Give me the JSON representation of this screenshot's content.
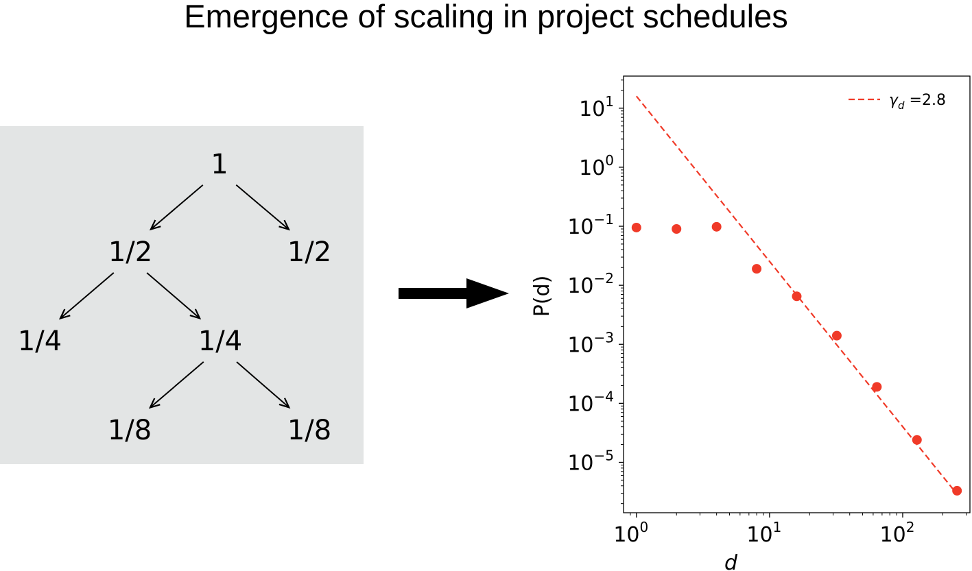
{
  "title": "Emergence of scaling in project schedules",
  "tree": {
    "nodes": [
      {
        "id": "root",
        "label": "1"
      },
      {
        "id": "l1-left",
        "label": "1/2"
      },
      {
        "id": "l1-right",
        "label": "1/2"
      },
      {
        "id": "l2-left",
        "label": "1/4"
      },
      {
        "id": "l2-right",
        "label": "1/4"
      },
      {
        "id": "l3-left",
        "label": "1/8"
      },
      {
        "id": "l3-right",
        "label": "1/8"
      }
    ],
    "edges": [
      [
        "root",
        "l1-left"
      ],
      [
        "root",
        "l1-right"
      ],
      [
        "l1-left",
        "l2-left"
      ],
      [
        "l1-left",
        "l2-right"
      ],
      [
        "l2-right",
        "l3-left"
      ],
      [
        "l2-right",
        "l3-right"
      ]
    ],
    "background": "#e3e5e5"
  },
  "chart_data": {
    "type": "scatter",
    "title": "",
    "xlabel": "d",
    "ylabel": "P(d)",
    "xscale": "log",
    "yscale": "log",
    "xlim": [
      0.8,
      320
    ],
    "ylim": [
      1.4e-06,
      35
    ],
    "x_ticks": [
      {
        "value": 1,
        "base": "10",
        "exp": "0"
      },
      {
        "value": 10,
        "base": "10",
        "exp": "1"
      },
      {
        "value": 100,
        "base": "10",
        "exp": "2"
      }
    ],
    "y_ticks": [
      {
        "value": 10,
        "base": "10",
        "exp": "1"
      },
      {
        "value": 1,
        "base": "10",
        "exp": "0"
      },
      {
        "value": 0.1,
        "base": "10",
        "exp": "−1"
      },
      {
        "value": 0.01,
        "base": "10",
        "exp": "−2"
      },
      {
        "value": 0.001,
        "base": "10",
        "exp": "−3"
      },
      {
        "value": 0.0001,
        "base": "10",
        "exp": "−4"
      },
      {
        "value": 1e-05,
        "base": "10",
        "exp": "−5"
      }
    ],
    "series": [
      {
        "color": "#f03a28",
        "x": [
          1,
          2,
          4,
          8,
          16,
          32,
          64,
          128,
          256
        ],
        "y": [
          0.095,
          0.09,
          0.098,
          0.019,
          0.0065,
          0.0014,
          0.00019,
          2.4e-05,
          3.3e-06
        ]
      }
    ],
    "fit": {
      "name": "γ_d =2.8",
      "legend_symbol": "γ",
      "legend_sub": "d",
      "legend_value": " =2.8",
      "gamma": 2.8,
      "x_range": [
        1,
        256
      ],
      "y_at_1": 16,
      "color": "#f03a28",
      "style": "dashed"
    },
    "legend_position": "top-right",
    "grid": false
  }
}
